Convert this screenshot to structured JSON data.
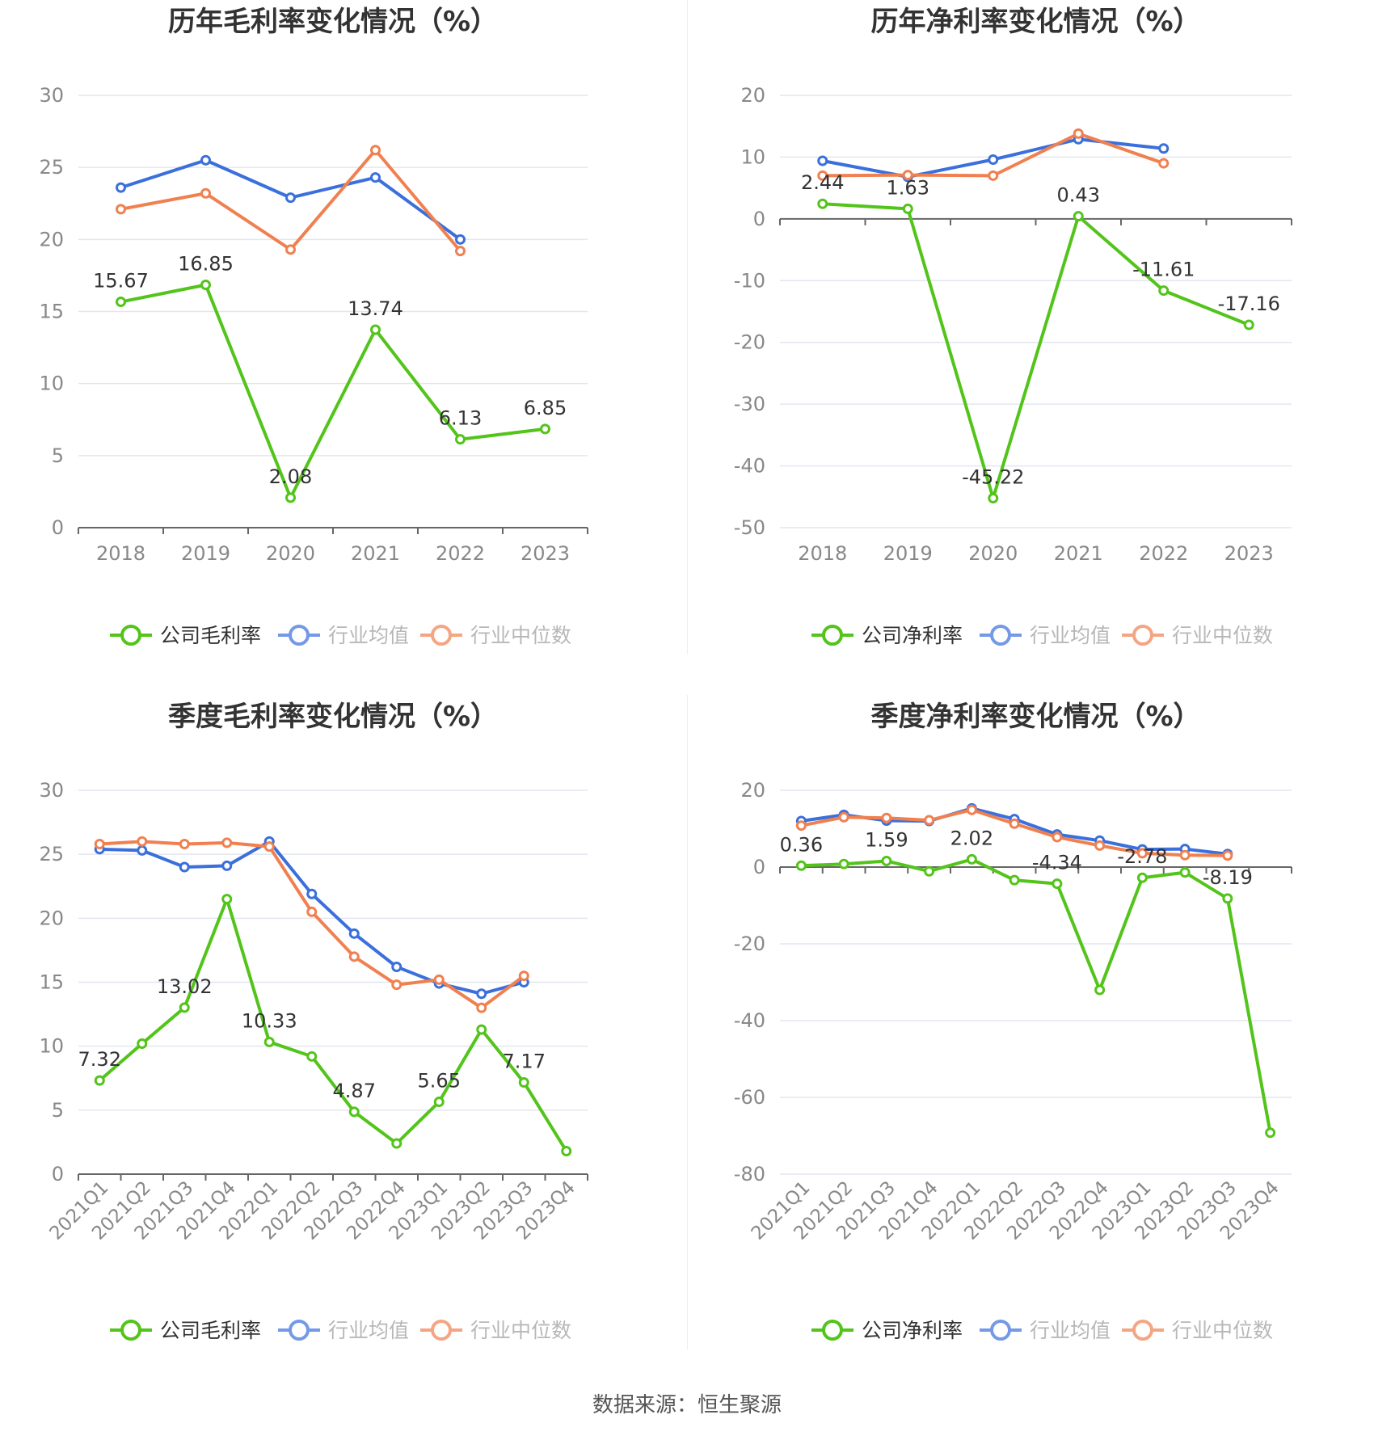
{
  "source_label": "数据来源：恒生聚源",
  "colors": {
    "company": "#52c41a",
    "avg": "#3a6fdc",
    "median": "#f08050",
    "axis": "#666666",
    "grid": "#e3e6ef",
    "label": "#333333",
    "tick": "#888888",
    "legend_muted": "#999999"
  },
  "chart_data": [
    {
      "type": "line",
      "title": "历年毛利率变化情况（%）",
      "categories": [
        "2018",
        "2019",
        "2020",
        "2021",
        "2022",
        "2023"
      ],
      "ylim": [
        0,
        30
      ],
      "yticks": [
        0,
        5,
        10,
        15,
        20,
        25,
        30
      ],
      "rotate_x": false,
      "series": [
        {
          "name": "公司毛利率",
          "role": "company",
          "values": [
            15.67,
            16.85,
            2.08,
            13.74,
            6.13,
            6.85
          ]
        },
        {
          "name": "行业均值",
          "role": "avg",
          "values": [
            23.6,
            25.5,
            22.9,
            24.3,
            20.0,
            null
          ]
        },
        {
          "name": "行业中位数",
          "role": "median",
          "values": [
            22.1,
            23.2,
            19.3,
            26.2,
            19.2,
            null
          ]
        }
      ],
      "data_labels": [
        "15.67",
        "16.85",
        "2.08",
        "13.74",
        "6.13",
        "6.85"
      ]
    },
    {
      "type": "line",
      "title": "历年净利率变化情况（%）",
      "categories": [
        "2018",
        "2019",
        "2020",
        "2021",
        "2022",
        "2023"
      ],
      "ylim": [
        -50,
        20
      ],
      "yticks": [
        -50,
        -40,
        -30,
        -20,
        -10,
        0,
        10,
        20
      ],
      "rotate_x": false,
      "series": [
        {
          "name": "公司净利率",
          "role": "company",
          "values": [
            2.44,
            1.63,
            -45.22,
            0.43,
            -11.61,
            -17.16
          ]
        },
        {
          "name": "行业均值",
          "role": "avg",
          "values": [
            9.4,
            6.8,
            9.6,
            12.9,
            11.4,
            null
          ]
        },
        {
          "name": "行业中位数",
          "role": "median",
          "values": [
            7.0,
            7.1,
            7.0,
            13.8,
            9.0,
            null
          ]
        }
      ],
      "data_labels": [
        "2.44",
        "1.63",
        "-45.22",
        "0.43",
        "-11.61",
        "-17.16"
      ]
    },
    {
      "type": "line",
      "title": "季度毛利率变化情况（%）",
      "categories": [
        "2021Q1",
        "2021Q2",
        "2021Q3",
        "2021Q4",
        "2022Q1",
        "2022Q2",
        "2022Q3",
        "2022Q4",
        "2023Q1",
        "2023Q2",
        "2023Q3",
        "2023Q4"
      ],
      "ylim": [
        0,
        30
      ],
      "yticks": [
        0,
        5,
        10,
        15,
        20,
        25,
        30
      ],
      "rotate_x": true,
      "series": [
        {
          "name": "公司毛利率",
          "role": "company",
          "values": [
            7.32,
            10.2,
            13.02,
            21.5,
            10.33,
            9.2,
            4.87,
            2.4,
            5.65,
            11.3,
            7.17,
            1.8
          ]
        },
        {
          "name": "行业均值",
          "role": "avg",
          "values": [
            25.4,
            25.3,
            24.0,
            24.1,
            26.0,
            21.9,
            18.8,
            16.2,
            14.9,
            14.1,
            15.0,
            null
          ]
        },
        {
          "name": "行业中位数",
          "role": "median",
          "values": [
            25.8,
            26.0,
            25.8,
            25.9,
            25.6,
            20.5,
            17.0,
            14.8,
            15.2,
            13.0,
            15.5,
            null
          ]
        }
      ],
      "data_labels": [
        "7.32",
        "",
        "13.02",
        "",
        "10.33",
        "",
        "4.87",
        "",
        "5.65",
        "",
        "7.17",
        ""
      ]
    },
    {
      "type": "line",
      "title": "季度净利率变化情况（%）",
      "categories": [
        "2021Q1",
        "2021Q2",
        "2021Q3",
        "2021Q4",
        "2022Q1",
        "2022Q2",
        "2022Q3",
        "2022Q4",
        "2023Q1",
        "2023Q2",
        "2023Q3",
        "2023Q4"
      ],
      "ylim": [
        -80,
        20
      ],
      "yticks": [
        -80,
        -60,
        -40,
        -20,
        0,
        20
      ],
      "rotate_x": true,
      "series": [
        {
          "name": "公司净利率",
          "role": "company",
          "values": [
            0.36,
            0.8,
            1.59,
            -1.1,
            2.02,
            -3.4,
            -4.34,
            -32.0,
            -2.78,
            -1.4,
            -8.19,
            -69.2
          ]
        },
        {
          "name": "行业均值",
          "role": "avg",
          "values": [
            12.0,
            13.6,
            12.1,
            12.0,
            15.3,
            12.5,
            8.5,
            6.9,
            4.6,
            4.7,
            3.4,
            null
          ]
        },
        {
          "name": "行业中位数",
          "role": "median",
          "values": [
            10.8,
            13.0,
            12.8,
            12.2,
            14.9,
            11.3,
            7.8,
            5.6,
            3.6,
            3.1,
            3.0,
            null
          ]
        }
      ],
      "data_labels": [
        "0.36",
        "",
        "1.59",
        "",
        "2.02",
        "",
        "-4.34",
        "",
        "-2.78",
        "",
        "-8.19",
        ""
      ]
    }
  ]
}
